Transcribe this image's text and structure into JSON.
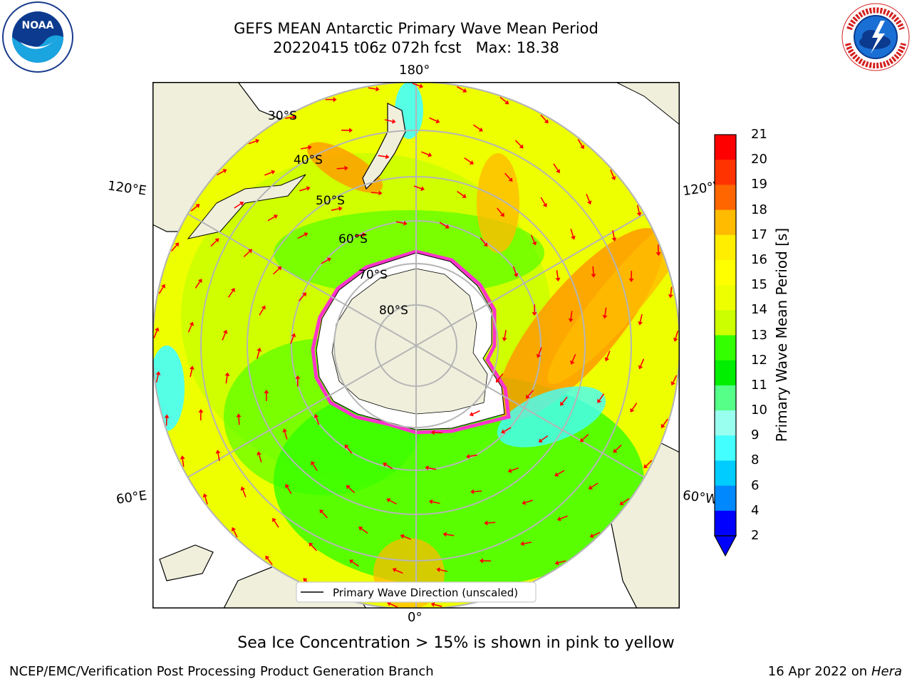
{
  "title": {
    "line1": "GEFS MEAN Antarctic Primary Wave Mean Period",
    "line2": "20220415 t06z 072h fcst   Max: 18.38"
  },
  "logos": {
    "left": "NOAA",
    "right": "NATIONAL WEATHER SERVICE"
  },
  "map": {
    "projection": "south-polar-stereographic",
    "longitude_labels": {
      "top": "180°",
      "bottom": "0°",
      "left_upper": "120°E",
      "left_lower": "60°E",
      "right_upper": "120°W",
      "right_lower": "60°W"
    },
    "latitude_labels": [
      "30°S",
      "40°S",
      "50°S",
      "60°S",
      "70°S",
      "80°S"
    ],
    "legend": "Primary Wave Direction (unscaled)",
    "arrow_color": "#ff0000"
  },
  "colorbar": {
    "label": "Primary Wave Mean Period [s]",
    "ticks": [
      "21",
      "20",
      "19",
      "18",
      "17",
      "16",
      "15",
      "14",
      "13",
      "12",
      "11",
      "10",
      "9",
      "8",
      "6",
      "4",
      "2"
    ],
    "colors": [
      "#ff0000",
      "#ff3300",
      "#ff6600",
      "#ff9900",
      "#ffbb00",
      "#ffee00",
      "#ffff00",
      "#eeff00",
      "#ccff00",
      "#99ff00",
      "#33ff00",
      "#00ee00",
      "#55ff88",
      "#99ffee",
      "#44ffff",
      "#00eeff",
      "#00ccff",
      "#0088ff",
      "#0000ff"
    ]
  },
  "note": "Sea Ice Concentration > 15% is shown in pink to yellow",
  "footer": {
    "left": "NCEP/EMC/Verification Post Processing Product Generation Branch",
    "right_date": "16 Apr 2022 on ",
    "right_host": "Hera"
  }
}
